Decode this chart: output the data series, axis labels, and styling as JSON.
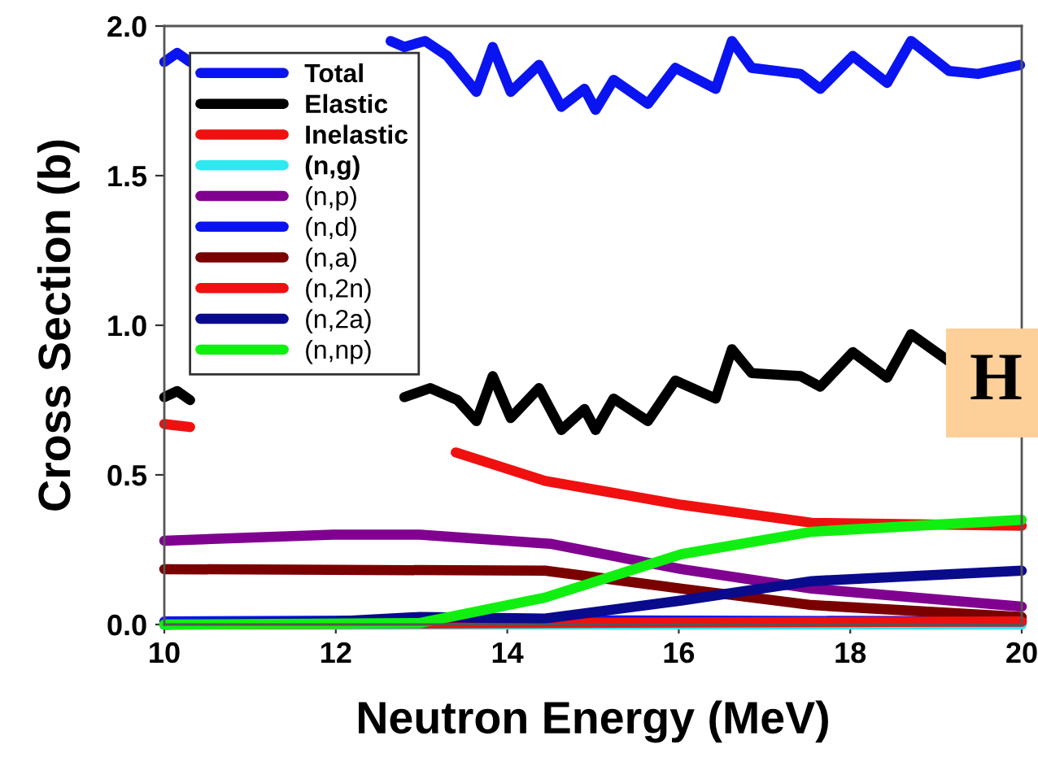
{
  "chart_data": {
    "type": "line",
    "xlabel": "Neutron Energy (MeV)",
    "ylabel": "Cross Section (b)",
    "xlim": [
      10,
      20
    ],
    "xticks": [
      10,
      12,
      14,
      16,
      18,
      20
    ],
    "ylim": [
      0,
      2.0
    ],
    "yticks": [
      {
        "value": 0,
        "label": "0.0"
      },
      {
        "value": 0.5,
        "label": "0.5"
      },
      {
        "value": 1.0,
        "label": "1.0"
      },
      {
        "value": 1.5,
        "label": "1.5"
      },
      {
        "value": 2.0,
        "label": "2.0"
      }
    ],
    "grid": false,
    "legend": "top left",
    "marker": "none",
    "line_style": "solid",
    "annotations": [
      "H"
    ],
    "series": [
      {
        "name": "Total",
        "color": "#0a14f0",
        "x": [
          10,
          10.15,
          10.3,
          10.4,
          12.64,
          12.8,
          13.04,
          13.3,
          13.64,
          13.83,
          14.04,
          14.37,
          14.63,
          14.9,
          15.03,
          15.24,
          15.64,
          15.96,
          16.43,
          16.62,
          16.85,
          17.42,
          17.65,
          18.03,
          18.43,
          18.71,
          19.15,
          19.49,
          19.98
        ],
        "values": [
          1.88,
          1.91,
          1.88,
          null,
          1.95,
          1.93,
          1.95,
          1.9,
          1.78,
          1.93,
          1.78,
          1.87,
          1.73,
          1.79,
          1.72,
          1.82,
          1.74,
          1.86,
          1.79,
          1.95,
          1.86,
          1.84,
          1.79,
          1.9,
          1.81,
          1.95,
          1.85,
          1.84,
          1.87
        ]
      },
      {
        "name": "Elastic",
        "color": "#000000",
        "x": [
          10,
          10.15,
          10.3,
          10.4,
          12.8,
          13.1,
          13.42,
          13.64,
          13.83,
          14.04,
          14.37,
          14.63,
          14.9,
          15.03,
          15.24,
          15.64,
          15.96,
          16.43,
          16.62,
          16.85,
          17.42,
          17.65,
          18.03,
          18.43,
          18.71,
          19.15
        ],
        "values": [
          0.76,
          0.78,
          0.75,
          null,
          0.76,
          0.79,
          0.75,
          0.68,
          0.83,
          0.69,
          0.79,
          0.65,
          0.72,
          0.65,
          0.755,
          0.68,
          0.815,
          0.755,
          0.92,
          0.84,
          0.83,
          0.795,
          0.91,
          0.825,
          0.97,
          0.88
        ]
      },
      {
        "name": "Inelastic",
        "color": "#f01010",
        "x": [
          10,
          10.3,
          10.4,
          13.4,
          14.44,
          16.03,
          17.55,
          20
        ],
        "values": [
          0.67,
          0.66,
          null,
          0.575,
          0.48,
          0.4,
          0.34,
          0.33
        ]
      },
      {
        "name": "(n,g)",
        "color": "#30e8f0",
        "x": [
          10,
          20
        ],
        "values": [
          0,
          0
        ]
      },
      {
        "name": "(n,p)",
        "color": "#800090",
        "x": [
          10,
          11.97,
          12.98,
          14.5,
          16.03,
          17.55,
          20
        ],
        "values": [
          0.28,
          0.3,
          0.3,
          0.27,
          0.185,
          0.12,
          0.06
        ]
      },
      {
        "name": "(n,d)",
        "color": "#0a14f0",
        "x": [
          10,
          14,
          20
        ],
        "values": [
          0.01,
          0.015,
          0.01
        ]
      },
      {
        "name": "(n,a)",
        "color": "#7a0000",
        "x": [
          10,
          14.44,
          16.03,
          17.55,
          20
        ],
        "values": [
          0.185,
          0.18,
          0.12,
          0.065,
          0.025
        ]
      },
      {
        "name": "(n,2n)",
        "color": "#f01010",
        "x": [
          10,
          14,
          20
        ],
        "values": [
          0,
          0.005,
          0.01
        ]
      },
      {
        "name": "(n,2a)",
        "color": "#0a0a8c",
        "x": [
          10,
          12,
          12.98,
          14.44,
          16.03,
          17.55,
          20
        ],
        "values": [
          0,
          0.01,
          0.025,
          0.02,
          0.08,
          0.145,
          0.18
        ]
      },
      {
        "name": "(n,np)",
        "color": "#10f010",
        "x": [
          10,
          12.98,
          14.44,
          16.03,
          17.55,
          20
        ],
        "values": [
          0,
          0.005,
          0.09,
          0.235,
          0.31,
          0.35
        ]
      }
    ]
  }
}
